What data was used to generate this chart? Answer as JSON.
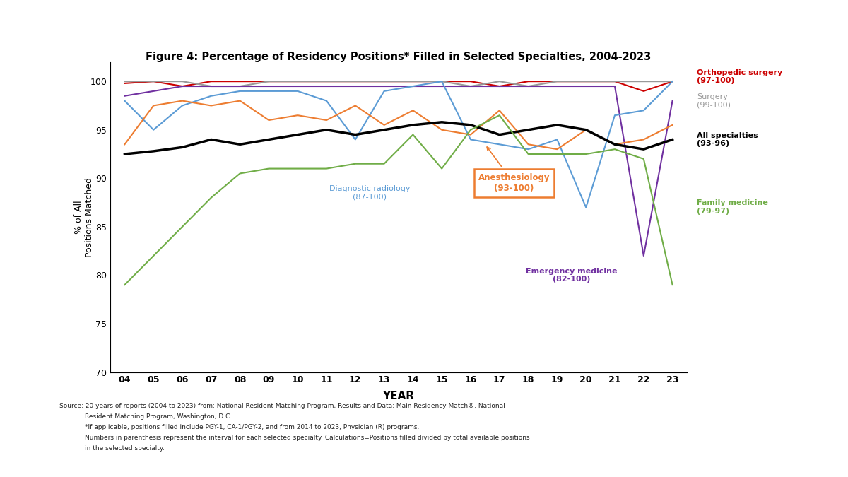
{
  "title": "Figure 4: Percentage of Residency Positions* Filled in Selected Specialties, 2004-2023",
  "xlabel": "YEAR",
  "ylabel": "% of All\nPositions Matched",
  "years": [
    2004,
    2005,
    2006,
    2007,
    2008,
    2009,
    2010,
    2011,
    2012,
    2013,
    2014,
    2015,
    2016,
    2017,
    2018,
    2019,
    2020,
    2021,
    2022,
    2023
  ],
  "year_labels": [
    "04",
    "05",
    "06",
    "07",
    "08",
    "09",
    "10",
    "11",
    "12",
    "13",
    "14",
    "15",
    "16",
    "17",
    "18",
    "19",
    "20",
    "21",
    "22",
    "23"
  ],
  "ylim": [
    70,
    102
  ],
  "yticks": [
    70,
    75,
    80,
    85,
    90,
    95,
    100
  ],
  "series": [
    {
      "name": "ortho",
      "color": "#cc0000",
      "linewidth": 1.5,
      "values": [
        99.8,
        100,
        99.5,
        100,
        100,
        100,
        100,
        100,
        100,
        100,
        100,
        100,
        100,
        99.5,
        100,
        100,
        100,
        100,
        99,
        100
      ]
    },
    {
      "name": "surgery",
      "color": "#999999",
      "linewidth": 1.5,
      "values": [
        100,
        100,
        100,
        99.5,
        99.5,
        100,
        100,
        100,
        100,
        100,
        100,
        100,
        99.5,
        100,
        99.5,
        100,
        100,
        100,
        100,
        100
      ]
    },
    {
      "name": "em",
      "color": "#7030a0",
      "linewidth": 1.5,
      "values": [
        98.5,
        99,
        99.5,
        99.5,
        99.5,
        99.5,
        99.5,
        99.5,
        99.5,
        99.5,
        99.5,
        99.5,
        99.5,
        99.5,
        99.5,
        99.5,
        99.5,
        99.5,
        82,
        98
      ]
    },
    {
      "name": "diag_rad",
      "color": "#5b9bd5",
      "linewidth": 1.5,
      "values": [
        98,
        95,
        97.5,
        98.5,
        99,
        99,
        99,
        98,
        94,
        99,
        99.5,
        100,
        94,
        93.5,
        93,
        94,
        87,
        96.5,
        97,
        100
      ]
    },
    {
      "name": "anesth",
      "color": "#ed7d31",
      "linewidth": 1.5,
      "values": [
        93.5,
        97.5,
        98,
        97.5,
        98,
        96,
        96.5,
        96,
        97.5,
        95.5,
        97,
        95,
        94.5,
        97,
        93.5,
        93,
        95,
        93.5,
        94,
        95.5
      ]
    },
    {
      "name": "all",
      "color": "#000000",
      "linewidth": 2.5,
      "values": [
        92.5,
        92.8,
        93.2,
        94.0,
        93.5,
        94.0,
        94.5,
        95.0,
        94.5,
        95.0,
        95.5,
        95.8,
        95.5,
        94.5,
        95.0,
        95.5,
        95.0,
        93.5,
        93.0,
        94.0
      ]
    },
    {
      "name": "family",
      "color": "#70ad47",
      "linewidth": 1.5,
      "values": [
        79,
        82,
        85,
        88,
        90.5,
        91,
        91,
        91,
        91.5,
        91.5,
        94.5,
        91,
        95,
        96.5,
        92.5,
        92.5,
        92.5,
        93,
        92,
        79
      ]
    }
  ],
  "source_line1": "Source: 20 years of reports (2004 to 2023) from: National Resident Matching Program, Results and Data: Main Residency Match®. National",
  "source_line2": "Resident Matching Program, Washington, D.C.",
  "source_line3": "*If applicable, positions filled include PGY-1, CA-1/PGY-2, and from 2014 to 2023, Physician (R) programs.",
  "source_line4": "Numbers in parenthesis represent the interval for each selected specialty. Calculations=Positions filled divided by total available positions",
  "source_line5": "in the selected specialty."
}
